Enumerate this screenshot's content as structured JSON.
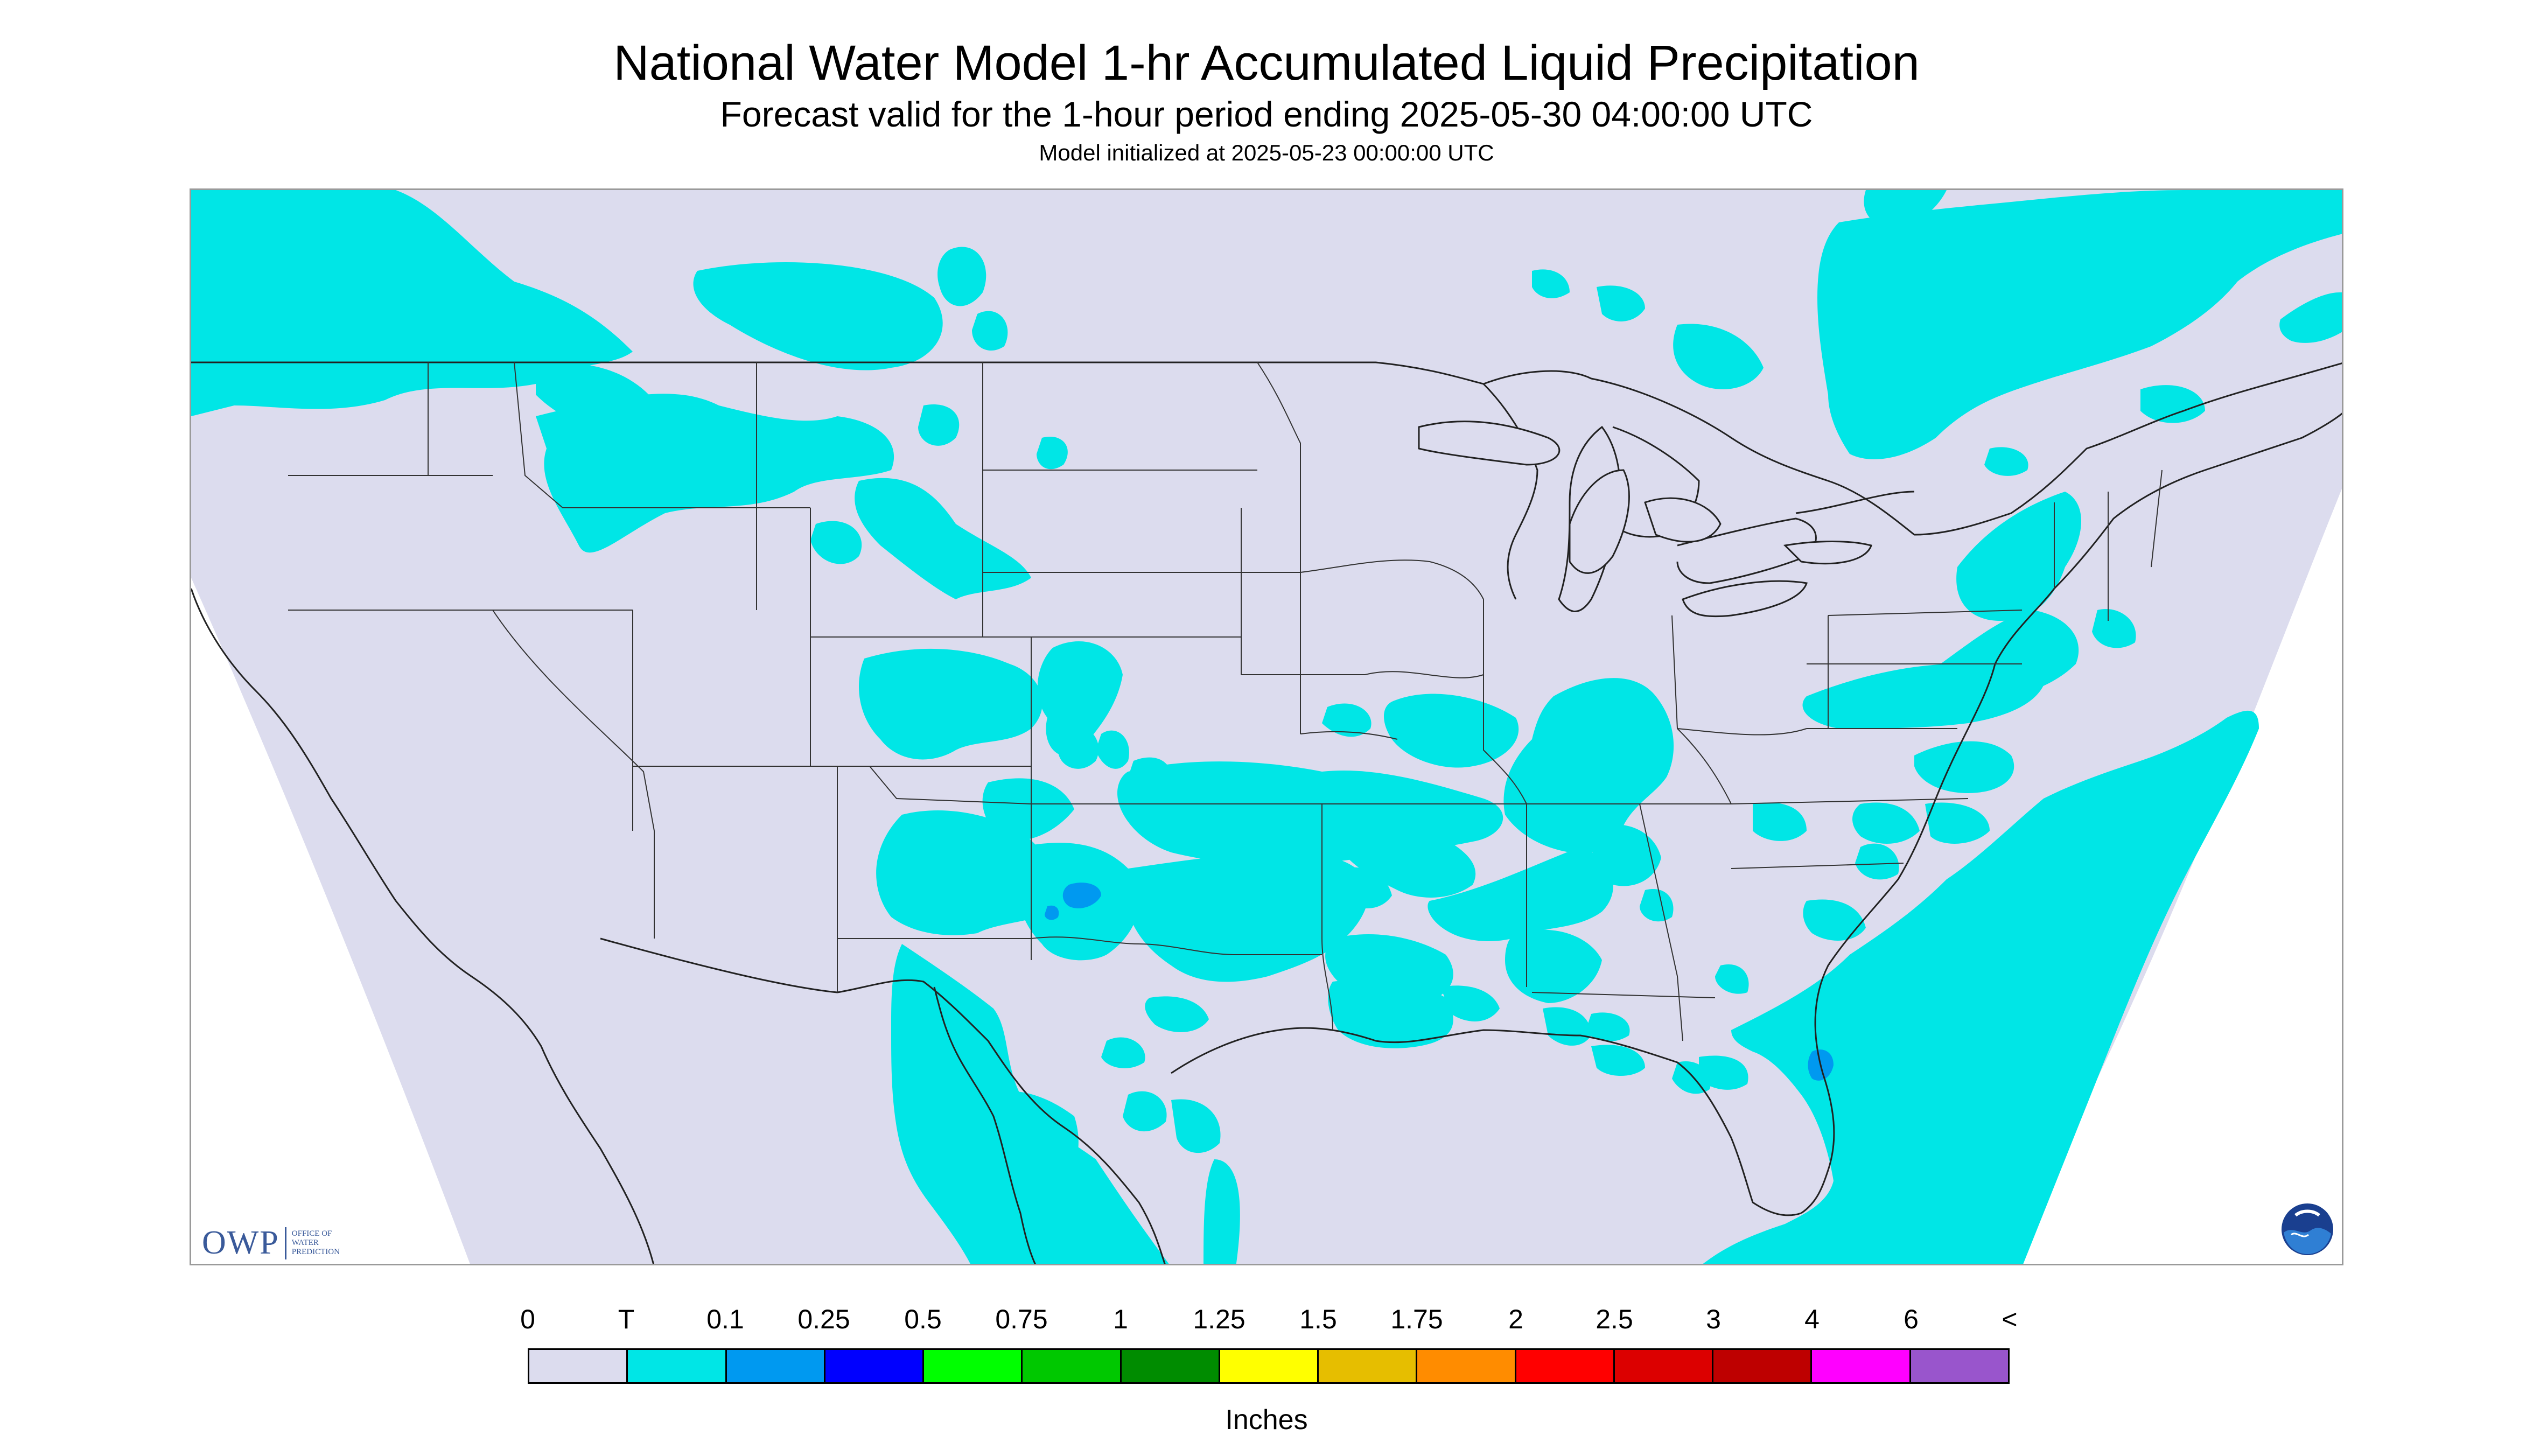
{
  "header": {
    "title": "National Water Model 1-hr Accumulated Liquid Precipitation",
    "subtitle": "Forecast valid for the 1-hour period ending 2025-05-30 04:00:00 UTC",
    "init": "Model initialized at 2025-05-23 00:00:00 UTC"
  },
  "map": {
    "colors": {
      "background": "#dcdcee",
      "outside": "#ffffff",
      "precip_trace": "#00e6e6",
      "precip_light": "#0099ff",
      "boundary": "#222222"
    }
  },
  "logos": {
    "owp_big": "OWP",
    "owp_small": "OFFICE OF WATER PREDICTION",
    "noaa": "NOAA"
  },
  "legend": {
    "labels": [
      "0",
      "T",
      "0.1",
      "0.25",
      "0.5",
      "0.75",
      "1",
      "1.25",
      "1.5",
      "1.75",
      "2",
      "2.5",
      "3",
      "4",
      "6",
      "<"
    ],
    "colors": [
      "#dcdcee",
      "#00e6e6",
      "#0099f0",
      "#0000ff",
      "#00ff00",
      "#00c800",
      "#008c00",
      "#ffff00",
      "#e6be00",
      "#ff8c00",
      "#ff0000",
      "#dc0000",
      "#be0000",
      "#ff00ff",
      "#9955cc"
    ],
    "unit": "Inches"
  }
}
